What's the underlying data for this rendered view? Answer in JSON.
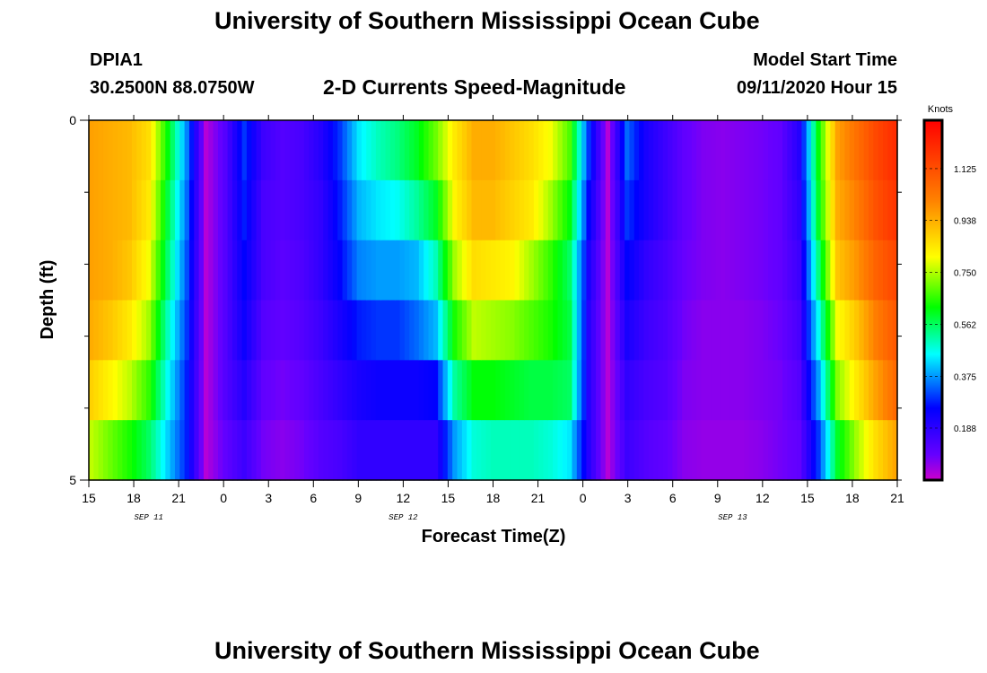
{
  "header": {
    "title": "University of Southern Mississippi Ocean Cube",
    "station_id": "DPIA1",
    "station_coords": "30.2500N 88.0750W",
    "plot_title": "2-D Currents Speed-Magnitude",
    "model_start_label": "Model Start Time",
    "model_start_value": "09/11/2020 Hour 15"
  },
  "footer": {
    "title": "University of Southern Mississippi Ocean Cube"
  },
  "chart_data": {
    "type": "heatmap",
    "title": "2-D Currents Speed-Magnitude",
    "xlabel": "Forecast Time(Z)",
    "ylabel": "Depth (ft)",
    "colorbar_label": "Knots",
    "colorbar_ticks": [
      "1.125",
      "0.938",
      "0.750",
      "0.562",
      "0.375",
      "0.188"
    ],
    "colorbar_range": [
      0.0,
      1.3
    ],
    "colormap": [
      "#cc00cc",
      "#6600ff",
      "#0000ff",
      "#00ffff",
      "#00ff00",
      "#ffff00",
      "#ff8000",
      "#ff0000"
    ],
    "x_tick_labels": [
      "15",
      "18",
      "21",
      "0",
      "3",
      "6",
      "9",
      "12",
      "15",
      "18",
      "21",
      "0",
      "3",
      "6",
      "9",
      "12",
      "15",
      "18",
      "21"
    ],
    "date_labels": [
      {
        "text": "SEP 11",
        "hours_from_start": 4
      },
      {
        "text": "SEP 12",
        "hours_from_start": 21
      },
      {
        "text": "SEP 13",
        "hours_from_start": 43
      }
    ],
    "x_range_hours": [
      0,
      54
    ],
    "ylim": [
      0,
      5
    ],
    "y_tick_labels": [
      "0",
      "5"
    ],
    "depth_levels": 5,
    "speed_columns": [
      [
        0.96,
        0.96,
        0.96,
        0.94,
        0.88,
        0.76
      ],
      [
        0.94,
        0.94,
        0.94,
        0.9,
        0.82,
        0.7
      ],
      [
        0.92,
        0.92,
        0.9,
        0.84,
        0.76,
        0.64
      ],
      [
        0.86,
        0.84,
        0.8,
        0.74,
        0.66,
        0.56
      ],
      [
        0.62,
        0.58,
        0.55,
        0.5,
        0.46,
        0.42
      ],
      [
        0.36,
        0.34,
        0.32,
        0.3,
        0.28,
        0.28
      ],
      [
        0.02,
        0.02,
        0.02,
        0.02,
        0.02,
        0.02
      ],
      [
        0.12,
        0.12,
        0.12,
        0.12,
        0.12,
        0.1
      ],
      [
        0.3,
        0.28,
        0.26,
        0.24,
        0.2,
        0.16
      ],
      [
        0.16,
        0.14,
        0.14,
        0.12,
        0.1,
        0.08
      ],
      [
        0.12,
        0.12,
        0.11,
        0.1,
        0.08,
        0.06
      ],
      [
        0.14,
        0.14,
        0.13,
        0.12,
        0.1,
        0.08
      ],
      [
        0.2,
        0.18,
        0.18,
        0.16,
        0.14,
        0.12
      ],
      [
        0.3,
        0.28,
        0.26,
        0.22,
        0.18,
        0.14
      ],
      [
        0.44,
        0.4,
        0.36,
        0.28,
        0.22,
        0.18
      ],
      [
        0.5,
        0.44,
        0.38,
        0.3,
        0.24,
        0.18
      ],
      [
        0.54,
        0.46,
        0.38,
        0.3,
        0.24,
        0.18
      ],
      [
        0.6,
        0.52,
        0.4,
        0.34,
        0.24,
        0.18
      ],
      [
        0.7,
        0.6,
        0.5,
        0.4,
        0.26,
        0.18
      ],
      [
        0.84,
        0.82,
        0.74,
        0.64,
        0.52,
        0.38
      ],
      [
        0.94,
        0.92,
        0.86,
        0.76,
        0.62,
        0.48
      ],
      [
        0.94,
        0.92,
        0.84,
        0.74,
        0.62,
        0.5
      ],
      [
        0.9,
        0.88,
        0.82,
        0.72,
        0.6,
        0.5
      ],
      [
        0.86,
        0.84,
        0.74,
        0.68,
        0.58,
        0.5
      ],
      [
        0.8,
        0.74,
        0.66,
        0.64,
        0.58,
        0.48
      ],
      [
        0.68,
        0.62,
        0.56,
        0.58,
        0.56,
        0.44
      ],
      [
        0.3,
        0.26,
        0.22,
        0.2,
        0.2,
        0.2
      ],
      [
        0.02,
        0.02,
        0.02,
        0.02,
        0.02,
        0.02
      ],
      [
        0.34,
        0.3,
        0.26,
        0.22,
        0.18,
        0.16
      ],
      [
        0.22,
        0.22,
        0.18,
        0.16,
        0.14,
        0.12
      ],
      [
        0.16,
        0.16,
        0.14,
        0.13,
        0.12,
        0.1
      ],
      [
        0.1,
        0.1,
        0.09,
        0.08,
        0.07,
        0.06
      ],
      [
        0.07,
        0.07,
        0.07,
        0.06,
        0.06,
        0.05
      ],
      [
        0.06,
        0.06,
        0.06,
        0.06,
        0.06,
        0.05
      ],
      [
        0.07,
        0.07,
        0.07,
        0.06,
        0.06,
        0.05
      ],
      [
        0.08,
        0.08,
        0.08,
        0.07,
        0.07,
        0.06
      ],
      [
        0.1,
        0.1,
        0.1,
        0.09,
        0.08,
        0.08
      ],
      [
        0.2,
        0.18,
        0.16,
        0.14,
        0.12,
        0.1
      ],
      [
        0.62,
        0.6,
        0.54,
        0.46,
        0.38,
        0.3
      ],
      [
        0.96,
        0.94,
        0.9,
        0.8,
        0.72,
        0.6
      ],
      [
        1.05,
        1.02,
        0.98,
        0.9,
        0.84,
        0.74
      ],
      [
        1.14,
        1.12,
        1.08,
        1.02,
        0.96,
        0.86
      ],
      [
        1.2,
        1.18,
        1.14,
        1.1,
        1.06,
        0.95
      ]
    ]
  }
}
